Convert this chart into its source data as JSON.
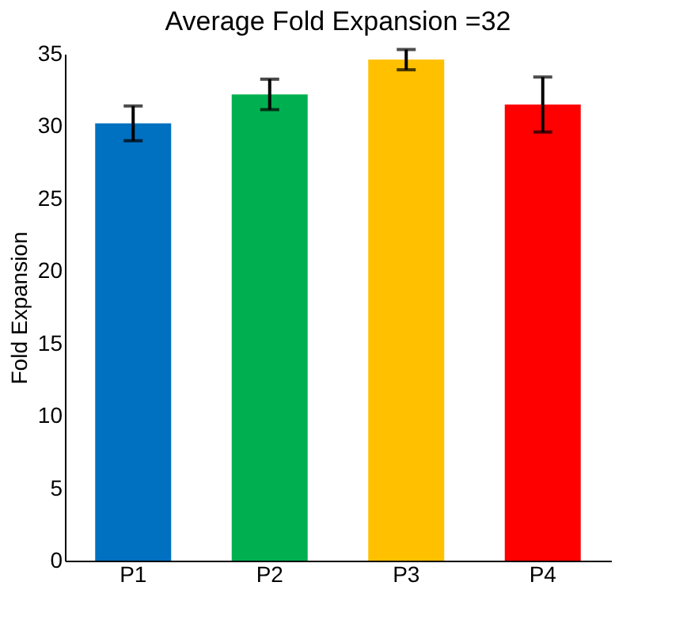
{
  "chart_data": {
    "type": "bar",
    "title": "Average Fold Expansion =32",
    "ylabel": "Fold Expansion",
    "categories": [
      "P1",
      "P2",
      "P3",
      "P4"
    ],
    "values": [
      30.2,
      32.2,
      34.6,
      31.5
    ],
    "errors": [
      1.2,
      1.05,
      0.7,
      1.9
    ],
    "colors": [
      "#0070c0",
      "#00b050",
      "#ffc000",
      "#ff0000"
    ],
    "ylim": [
      0,
      35
    ],
    "yticks": [
      0,
      5,
      10,
      15,
      20,
      25,
      30,
      35
    ],
    "grid": false
  }
}
